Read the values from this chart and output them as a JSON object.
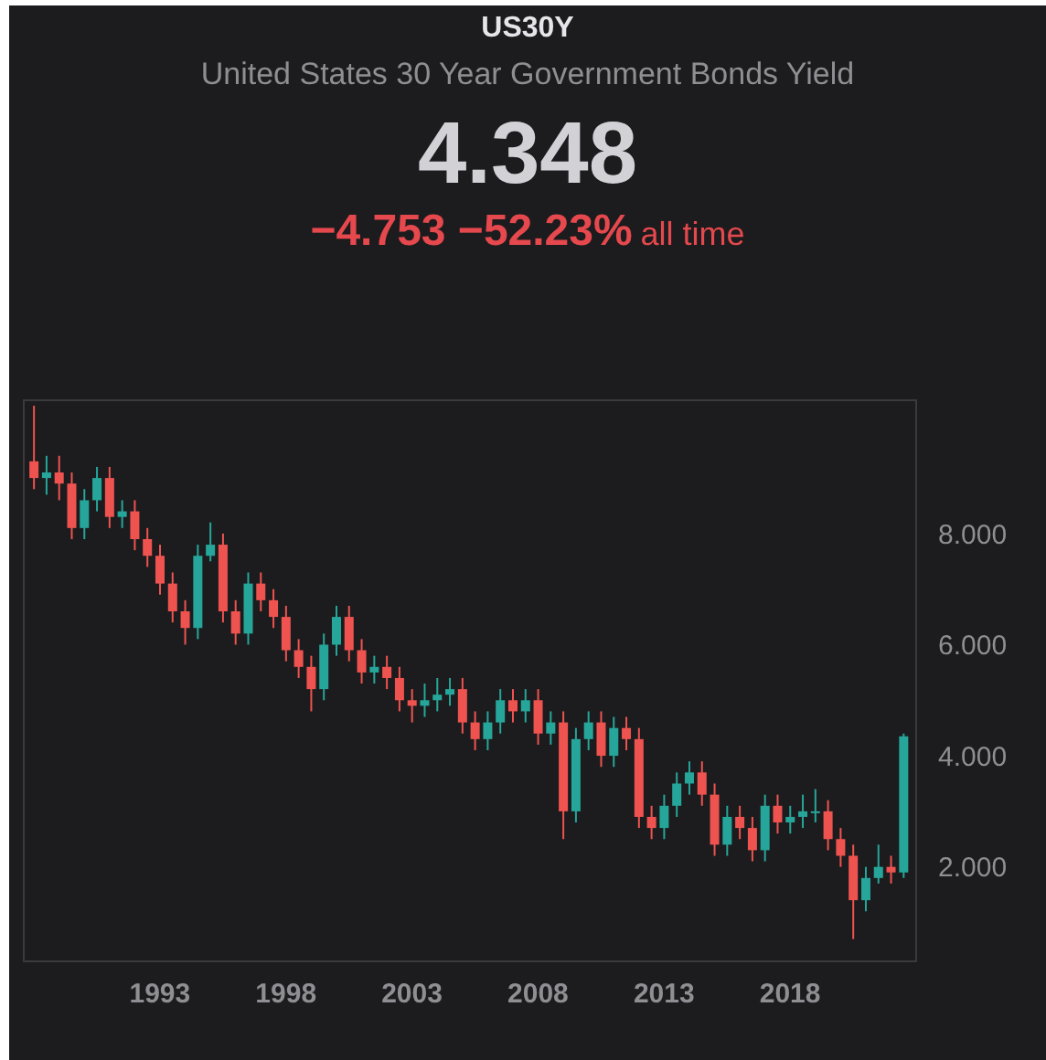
{
  "chart_data": {
    "type": "candlestick",
    "title": "US30Y",
    "subtitle": "United States 30 Year Government Bonds Yield",
    "annotations": [
      "4.348",
      "−4.753 −52.23%",
      "all time"
    ],
    "x": [
      1988.0,
      1988.5,
      1989.0,
      1989.5,
      1990.0,
      1990.5,
      1991.0,
      1991.5,
      1992.0,
      1992.5,
      1993.0,
      1993.5,
      1994.0,
      1994.5,
      1995.0,
      1995.5,
      1996.0,
      1996.5,
      1997.0,
      1997.5,
      1998.0,
      1998.5,
      1999.0,
      1999.5,
      2000.0,
      2000.5,
      2001.0,
      2001.5,
      2002.0,
      2002.5,
      2003.0,
      2003.5,
      2004.0,
      2004.5,
      2005.0,
      2005.5,
      2006.0,
      2006.5,
      2007.0,
      2007.5,
      2008.0,
      2008.5,
      2009.0,
      2009.5,
      2010.0,
      2010.5,
      2011.0,
      2011.5,
      2012.0,
      2012.5,
      2013.0,
      2013.5,
      2014.0,
      2014.5,
      2015.0,
      2015.5,
      2016.0,
      2016.5,
      2017.0,
      2017.5,
      2018.0,
      2018.5,
      2019.0,
      2019.5,
      2020.0,
      2020.5,
      2021.0,
      2021.5,
      2022.0,
      2022.5
    ],
    "ohlc": [
      [
        9.3,
        10.3,
        8.8,
        9.0
      ],
      [
        9.0,
        9.4,
        8.7,
        9.1
      ],
      [
        9.1,
        9.4,
        8.6,
        8.9
      ],
      [
        8.9,
        9.1,
        7.9,
        8.1
      ],
      [
        8.1,
        8.8,
        7.9,
        8.6
      ],
      [
        8.6,
        9.2,
        8.4,
        9.0
      ],
      [
        9.0,
        9.2,
        8.1,
        8.3
      ],
      [
        8.3,
        8.6,
        8.1,
        8.4
      ],
      [
        8.4,
        8.6,
        7.7,
        7.9
      ],
      [
        7.9,
        8.1,
        7.4,
        7.6
      ],
      [
        7.6,
        7.8,
        6.9,
        7.1
      ],
      [
        7.1,
        7.3,
        6.4,
        6.6
      ],
      [
        6.6,
        6.8,
        6.0,
        6.3
      ],
      [
        6.3,
        7.8,
        6.1,
        7.6
      ],
      [
        7.6,
        8.2,
        7.5,
        7.8
      ],
      [
        7.8,
        8.0,
        6.4,
        6.6
      ],
      [
        6.6,
        6.8,
        6.0,
        6.2
      ],
      [
        6.2,
        7.3,
        6.0,
        7.1
      ],
      [
        7.1,
        7.3,
        6.6,
        6.8
      ],
      [
        6.8,
        7.0,
        6.3,
        6.5
      ],
      [
        6.5,
        6.7,
        5.7,
        5.9
      ],
      [
        5.9,
        6.1,
        5.4,
        5.6
      ],
      [
        5.6,
        5.8,
        4.8,
        5.2
      ],
      [
        5.2,
        6.2,
        5.0,
        6.0
      ],
      [
        6.0,
        6.7,
        5.8,
        6.5
      ],
      [
        6.5,
        6.7,
        5.7,
        5.9
      ],
      [
        5.9,
        6.1,
        5.3,
        5.5
      ],
      [
        5.5,
        5.8,
        5.3,
        5.6
      ],
      [
        5.6,
        5.8,
        5.2,
        5.4
      ],
      [
        5.4,
        5.6,
        4.8,
        5.0
      ],
      [
        5.0,
        5.2,
        4.6,
        4.9
      ],
      [
        4.9,
        5.3,
        4.7,
        5.0
      ],
      [
        5.0,
        5.4,
        4.8,
        5.1
      ],
      [
        5.1,
        5.4,
        4.9,
        5.2
      ],
      [
        5.2,
        5.4,
        4.4,
        4.6
      ],
      [
        4.6,
        4.8,
        4.1,
        4.3
      ],
      [
        4.3,
        4.8,
        4.1,
        4.6
      ],
      [
        4.6,
        5.2,
        4.4,
        5.0
      ],
      [
        5.0,
        5.2,
        4.6,
        4.8
      ],
      [
        4.8,
        5.2,
        4.6,
        5.0
      ],
      [
        5.0,
        5.2,
        4.2,
        4.4
      ],
      [
        4.4,
        4.8,
        4.2,
        4.6
      ],
      [
        4.6,
        4.8,
        2.5,
        3.0
      ],
      [
        3.0,
        4.5,
        2.8,
        4.3
      ],
      [
        4.3,
        4.8,
        4.1,
        4.6
      ],
      [
        4.6,
        4.8,
        3.8,
        4.0
      ],
      [
        4.0,
        4.7,
        3.8,
        4.5
      ],
      [
        4.5,
        4.7,
        4.1,
        4.3
      ],
      [
        4.3,
        4.5,
        2.7,
        2.9
      ],
      [
        2.9,
        3.1,
        2.5,
        2.7
      ],
      [
        2.7,
        3.3,
        2.5,
        3.1
      ],
      [
        3.1,
        3.7,
        2.9,
        3.5
      ],
      [
        3.5,
        3.9,
        3.3,
        3.7
      ],
      [
        3.7,
        3.9,
        3.1,
        3.3
      ],
      [
        3.3,
        3.5,
        2.2,
        2.4
      ],
      [
        2.4,
        3.1,
        2.2,
        2.9
      ],
      [
        2.9,
        3.1,
        2.5,
        2.7
      ],
      [
        2.7,
        2.9,
        2.1,
        2.3
      ],
      [
        2.3,
        3.3,
        2.1,
        3.1
      ],
      [
        3.1,
        3.3,
        2.6,
        2.8
      ],
      [
        2.8,
        3.1,
        2.6,
        2.9
      ],
      [
        2.9,
        3.3,
        2.7,
        3.0
      ],
      [
        3.0,
        3.4,
        2.8,
        3.0
      ],
      [
        3.0,
        3.2,
        2.3,
        2.5
      ],
      [
        2.5,
        2.7,
        2.0,
        2.2
      ],
      [
        2.2,
        2.4,
        0.7,
        1.4
      ],
      [
        1.4,
        2.0,
        1.2,
        1.8
      ],
      [
        1.8,
        2.4,
        1.7,
        2.0
      ],
      [
        2.0,
        2.2,
        1.7,
        1.9
      ],
      [
        1.9,
        4.4,
        1.8,
        4.35
      ]
    ],
    "colors": [
      "#ef5350",
      "#26a69a",
      "#ef5350",
      "#ef5350",
      "#26a69a",
      "#26a69a",
      "#ef5350",
      "#26a69a",
      "#ef5350",
      "#ef5350",
      "#ef5350",
      "#ef5350",
      "#ef5350",
      "#26a69a",
      "#26a69a",
      "#ef5350",
      "#ef5350",
      "#26a69a",
      "#ef5350",
      "#ef5350",
      "#ef5350",
      "#ef5350",
      "#ef5350",
      "#26a69a",
      "#26a69a",
      "#ef5350",
      "#ef5350",
      "#26a69a",
      "#ef5350",
      "#ef5350",
      "#ef5350",
      "#26a69a",
      "#26a69a",
      "#26a69a",
      "#ef5350",
      "#ef5350",
      "#26a69a",
      "#26a69a",
      "#ef5350",
      "#26a69a",
      "#ef5350",
      "#26a69a",
      "#ef5350",
      "#26a69a",
      "#26a69a",
      "#ef5350",
      "#26a69a",
      "#ef5350",
      "#ef5350",
      "#ef5350",
      "#26a69a",
      "#26a69a",
      "#26a69a",
      "#ef5350",
      "#ef5350",
      "#26a69a",
      "#ef5350",
      "#ef5350",
      "#26a69a",
      "#ef5350",
      "#26a69a",
      "#26a69a",
      "#26a69a",
      "#ef5350",
      "#ef5350",
      "#ef5350",
      "#26a69a",
      "#26a69a",
      "#ef5350",
      "#26a69a"
    ],
    "xlim": [
      1987.6,
      2023.0
    ],
    "xticks": [
      1993,
      1998,
      2003,
      2008,
      2013,
      2018
    ],
    "ylim": [
      0.3,
      10.4
    ],
    "yticks": [
      {
        "value": 2,
        "label": "2.000"
      },
      {
        "value": 4,
        "label": "4.000"
      },
      {
        "value": 6,
        "label": "6.000"
      },
      {
        "value": 8,
        "label": "8.000"
      }
    ],
    "grid": false,
    "legend": false
  }
}
